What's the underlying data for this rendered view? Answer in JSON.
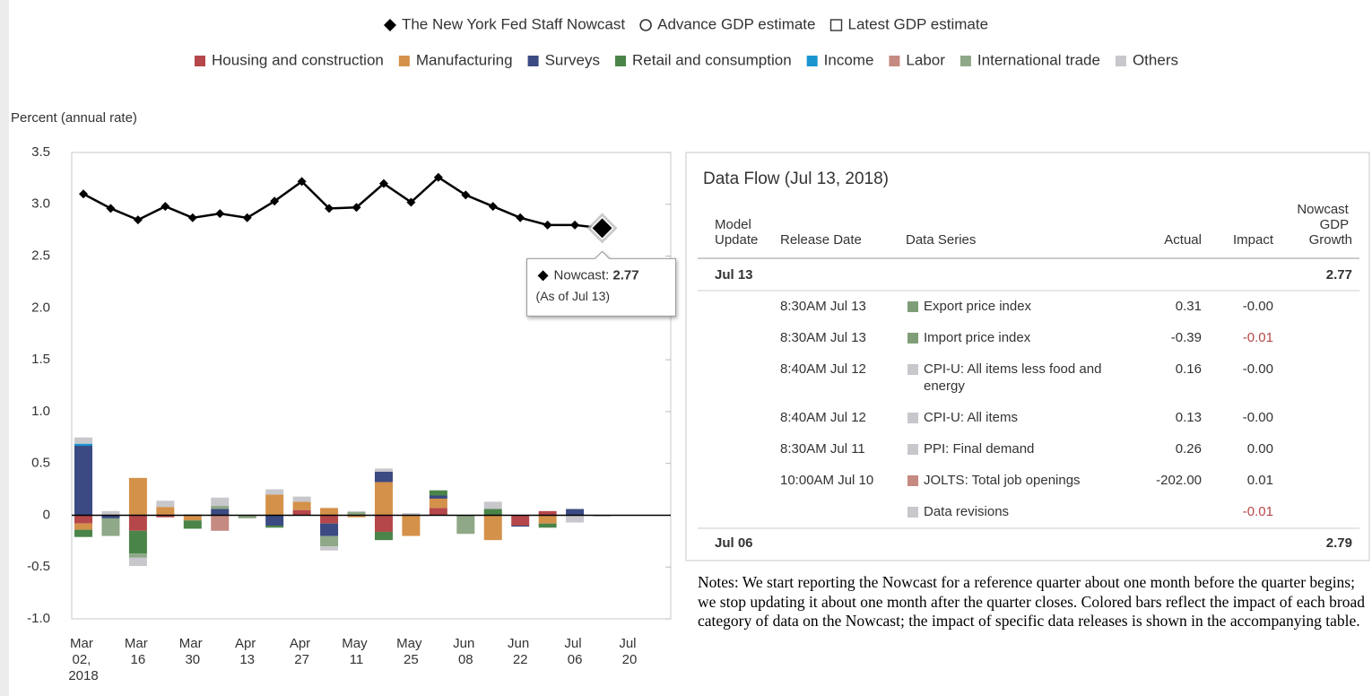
{
  "chart_data": {
    "type": "combo",
    "y_label": "Percent (annual rate)",
    "categories": [
      "Mar 02, 2018",
      null,
      "Mar 16",
      null,
      "Mar 30",
      null,
      "Apr 13",
      null,
      "Apr 27",
      null,
      "May 11",
      null,
      "May 25",
      null,
      "Jun 08",
      null,
      "Jun 22",
      null,
      "Jul 06",
      null,
      "Jul 20"
    ],
    "ylim": [
      -1.0,
      3.5
    ],
    "yticks": [
      3.5,
      {
        "value": 3,
        "label": "3.0"
      },
      2.5,
      {
        "value": 2,
        "label": "2.0"
      },
      1.5,
      {
        "value": 1,
        "label": "1.0"
      },
      0.5,
      0,
      -0.5,
      {
        "value": -1,
        "label": "-1.0"
      }
    ],
    "series": [
      {
        "name": "The New York Fed Staff Nowcast",
        "type": "line",
        "marker": "diamond",
        "color": "#000000",
        "values": [
          3.1,
          2.96,
          2.85,
          2.98,
          2.87,
          2.91,
          2.87,
          3.03,
          3.22,
          2.96,
          2.97,
          3.2,
          3.02,
          3.26,
          3.09,
          2.98,
          2.87,
          2.8,
          2.8,
          2.77,
          null
        ]
      },
      {
        "name": "Advance GDP estimate",
        "type": "marker",
        "marker": "circle",
        "color": "#333333",
        "values": [
          null,
          null,
          null,
          null,
          null,
          null,
          null,
          null,
          null,
          null,
          null,
          null,
          null,
          null,
          null,
          null,
          null,
          null,
          null,
          null,
          null
        ]
      },
      {
        "name": "Latest GDP estimate",
        "type": "marker",
        "marker": "square",
        "color": "#333333",
        "values": [
          null,
          null,
          null,
          null,
          null,
          null,
          null,
          null,
          null,
          null,
          null,
          null,
          null,
          null,
          null,
          null,
          null,
          null,
          null,
          null,
          null
        ]
      },
      {
        "name": "Housing and construction",
        "type": "bar",
        "color": "#b5474a",
        "values": [
          -0.08,
          0,
          -0.15,
          -0.02,
          0,
          0,
          0,
          0,
          0.05,
          -0.08,
          0,
          -0.16,
          0,
          0.07,
          0,
          0,
          -0.1,
          0.04,
          0,
          0,
          null
        ]
      },
      {
        "name": "Manufacturing",
        "type": "bar",
        "color": "#d4914a",
        "values": [
          -0.06,
          0,
          0.36,
          0.08,
          -0.05,
          0,
          0,
          0.2,
          0.08,
          0.07,
          -0.02,
          0.32,
          -0.2,
          0.09,
          0,
          -0.24,
          0,
          -0.08,
          0,
          0,
          null
        ]
      },
      {
        "name": "Surveys",
        "type": "bar",
        "color": "#3b4a82",
        "values": [
          0.67,
          -0.03,
          0,
          0,
          0,
          0.06,
          0,
          -0.1,
          0,
          -0.12,
          0,
          0.1,
          0,
          0.03,
          0,
          0,
          -0.01,
          0,
          0.06,
          0,
          null
        ]
      },
      {
        "name": "Retail and consumption",
        "type": "bar",
        "color": "#4b8449",
        "values": [
          -0.07,
          0,
          -0.22,
          0,
          -0.08,
          0,
          0,
          -0.02,
          0,
          0,
          0,
          -0.08,
          0,
          0.05,
          0,
          0.06,
          0,
          -0.04,
          0,
          0,
          null
        ]
      },
      {
        "name": "Income",
        "type": "bar",
        "color": "#1a95d0",
        "values": [
          0.02,
          0,
          0,
          0,
          0,
          0,
          0,
          0,
          0,
          0,
          0,
          0,
          0,
          0,
          0,
          0,
          0,
          0,
          0,
          0,
          null
        ]
      },
      {
        "name": "Labor",
        "type": "bar",
        "color": "#c58a82",
        "values": [
          0,
          0,
          0,
          0,
          0,
          -0.15,
          0,
          0,
          0,
          0,
          0,
          0,
          0,
          0,
          0,
          0,
          0,
          0,
          0,
          0,
          null
        ]
      },
      {
        "name": "International trade",
        "type": "bar",
        "color": "#8fa887",
        "values": [
          0,
          -0.17,
          -0.04,
          0,
          0,
          0.03,
          -0.03,
          0,
          0,
          -0.1,
          0.03,
          0,
          0,
          0,
          -0.18,
          0,
          0,
          0,
          0,
          -0.01,
          null
        ]
      },
      {
        "name": "Others",
        "type": "bar",
        "color": "#c7c7cc",
        "values": [
          0.06,
          0.04,
          -0.08,
          0.06,
          0.01,
          0.08,
          0,
          0.05,
          0.05,
          -0.04,
          0.01,
          0.03,
          0.02,
          0,
          0,
          0.07,
          0,
          0,
          -0.07,
          0,
          null
        ]
      }
    ],
    "tooltip": {
      "label": "Nowcast:",
      "note": "(As of Jul 13)"
    }
  },
  "table": {
    "title": "Data Flow (Jul 13, 2018)",
    "columns": [
      "Model Update",
      "Release Date",
      "Data Series",
      "Actual",
      "Impact",
      "Nowcast GDP Growth"
    ],
    "negative_color": "#b5474a",
    "groups": [
      {
        "model_update": "Jul 13",
        "nowcast": "2.77",
        "rows": [
          {
            "release": "8:30AM Jul 13",
            "series": "Export price index",
            "color": "#7f9e78",
            "actual": "0.31",
            "impact": "-0.00"
          },
          {
            "release": "8:30AM Jul 13",
            "series": "Import price index",
            "color": "#7f9e78",
            "actual": "-0.39",
            "impact": "-0.01"
          },
          {
            "release": "8:40AM Jul 12",
            "series": "CPI-U: All items less food and energy",
            "color": "#c7c7cc",
            "actual": "0.16",
            "impact": "-0.00"
          },
          {
            "release": "8:40AM Jul 12",
            "series": "CPI-U: All items",
            "color": "#c7c7cc",
            "actual": "0.13",
            "impact": "-0.00"
          },
          {
            "release": "8:30AM Jul 11",
            "series": "PPI: Final demand",
            "color": "#c7c7cc",
            "actual": "0.26",
            "impact": "0.00"
          },
          {
            "release": "10:00AM Jul 10",
            "series": "JOLTS: Total job openings",
            "color": "#c58a82",
            "actual": "-202.00",
            "impact": "0.01"
          },
          {
            "release": null,
            "series": "Data revisions",
            "color": "#c7c7cc",
            "actual": null,
            "impact": "-0.01"
          }
        ]
      },
      {
        "model_update": "Jul 06",
        "nowcast": "2.79",
        "rows": []
      }
    ]
  },
  "notes": "Notes: We start reporting the Nowcast for a reference quarter about one month before the quarter begins; we stop updating it about one month after the quarter closes. Colored bars reflect the impact of each broad category of data on the Nowcast; the impact of specific data releases is shown in the accompanying table."
}
